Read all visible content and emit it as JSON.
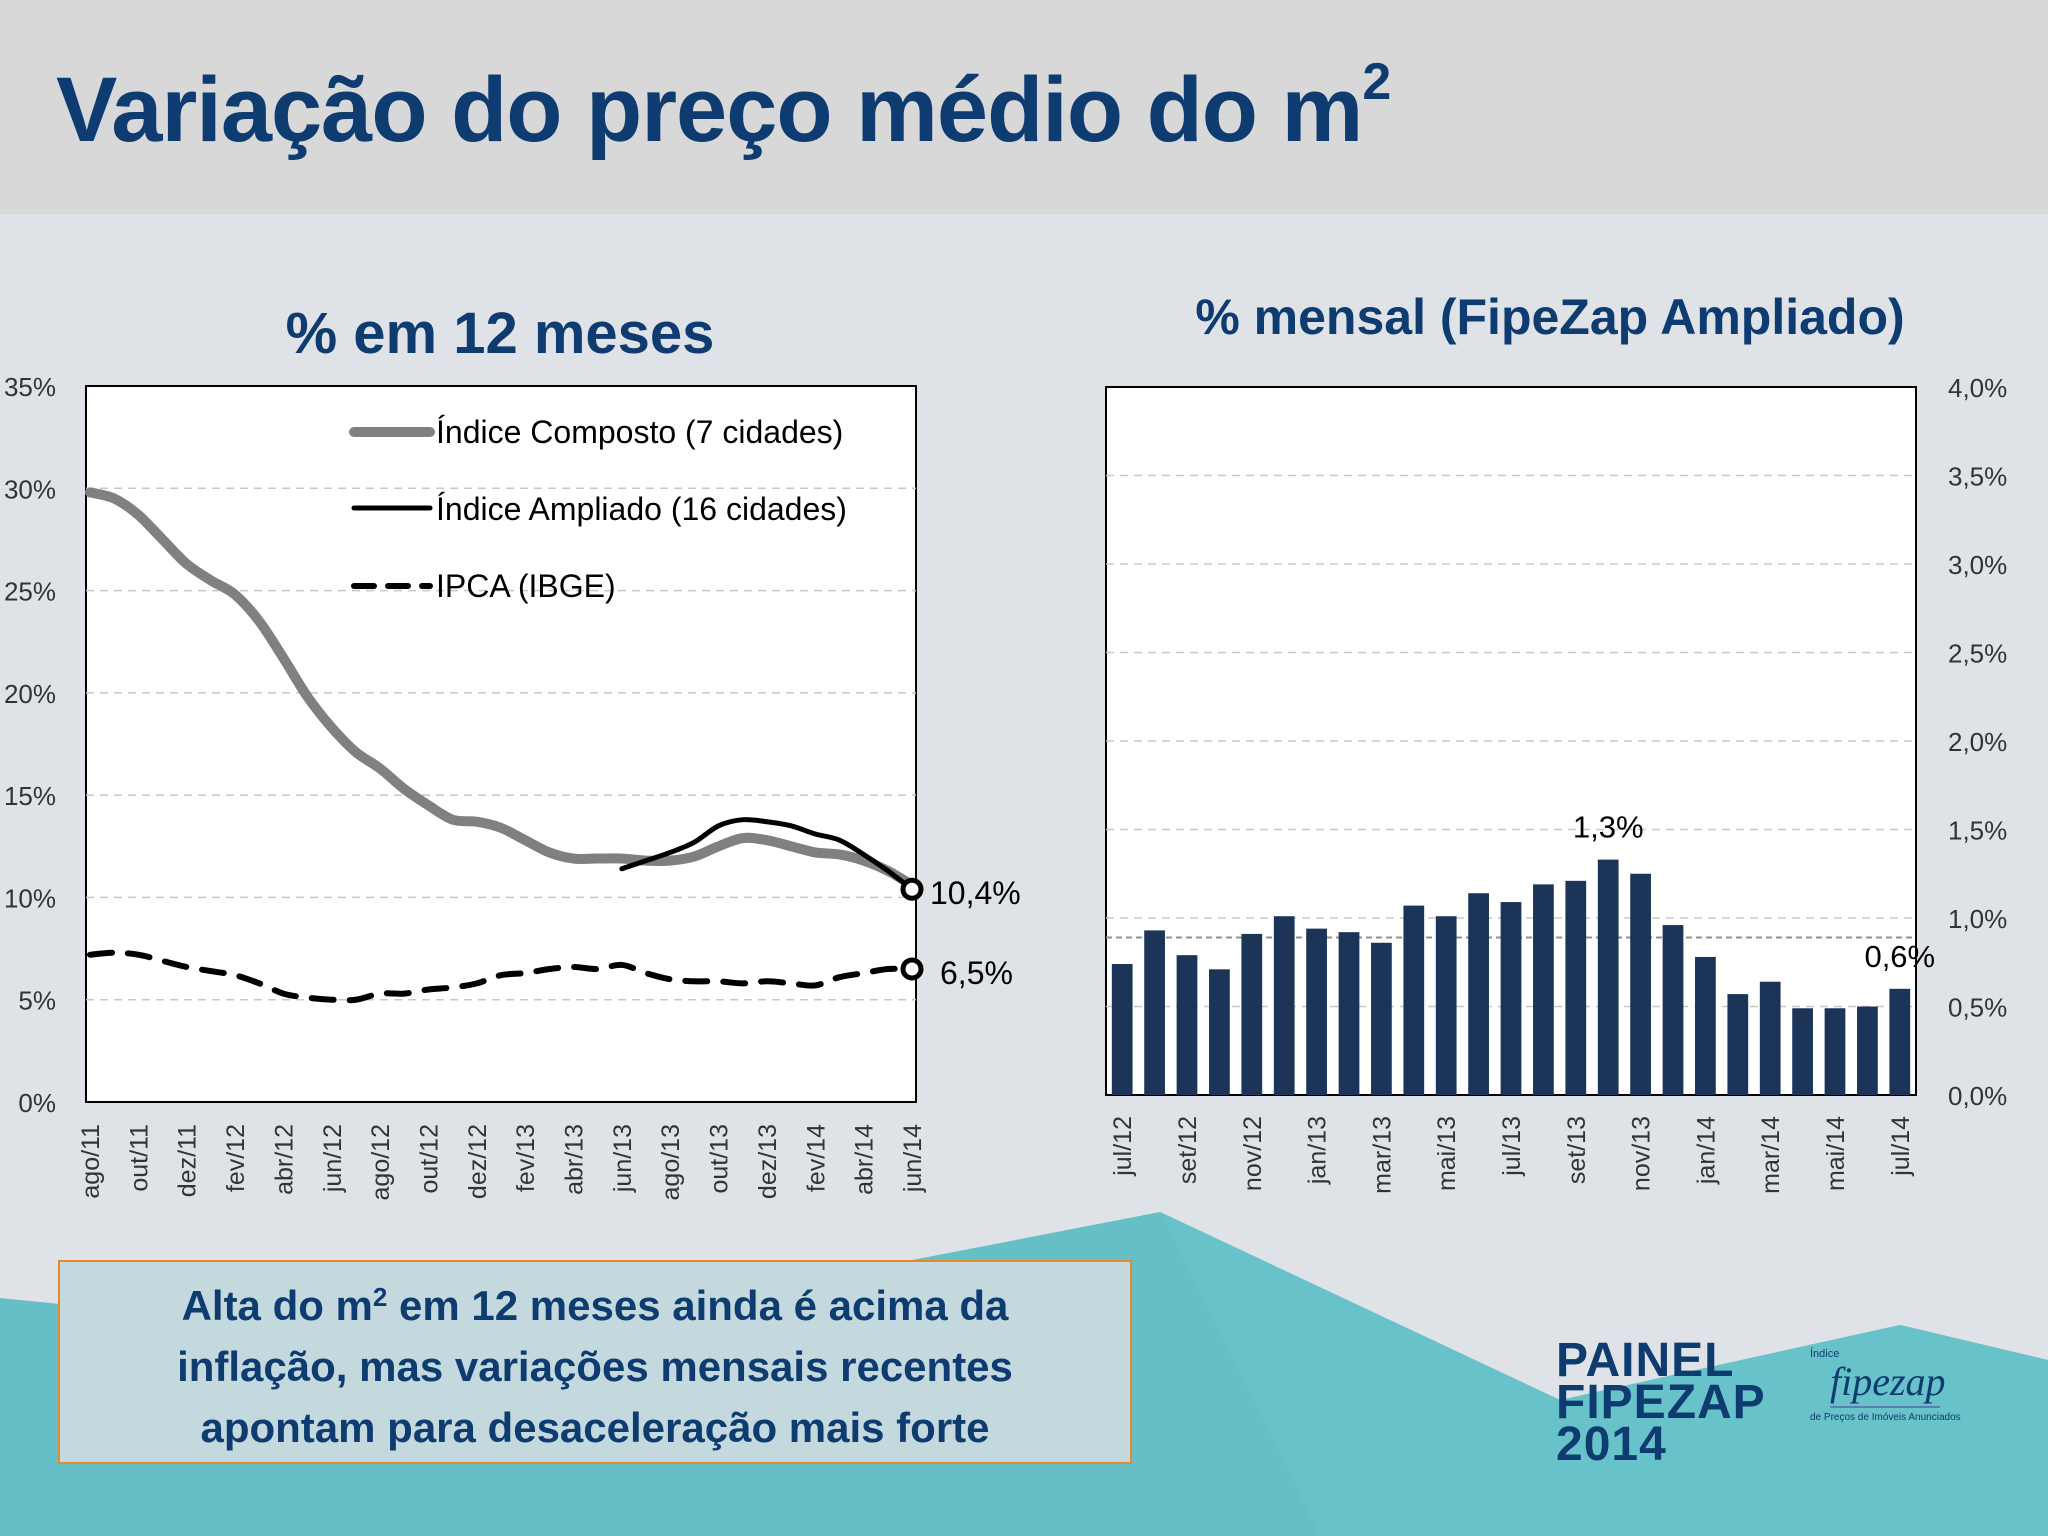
{
  "page": {
    "title": "Variação do preço médio do m",
    "title_sup": "2"
  },
  "colors": {
    "title_blue": "#0e3b70",
    "bar_blue": "#1b3457",
    "composto_gray": "#808080",
    "ampliado_black": "#000000",
    "teal": "#5fbcc4",
    "callout_border": "#e38b2c"
  },
  "callout": {
    "line1_pre": "Alta do m",
    "line1_sup": "2",
    "line1_post": " em 12 meses ainda é acima da",
    "line2": "inflação, mas variações mensais recentes",
    "line3": "apontam para desaceleração mais forte"
  },
  "brand": {
    "line1": "PAINEL",
    "line2": "FIPEZAP",
    "line3": "2014",
    "logo_small": "Índice",
    "logo_word": "fipezap",
    "logo_sub": "de Preços de Imóveis Anunciados"
  },
  "chart_data": [
    {
      "type": "line",
      "title": "% em 12 meses",
      "ylim": [
        0,
        35
      ],
      "y_ticks": [
        "0%",
        "5%",
        "10%",
        "15%",
        "20%",
        "25%",
        "30%",
        "35%"
      ],
      "x_tick_labels": [
        "ago/11",
        "out/11",
        "dez/11",
        "fev/12",
        "abr/12",
        "jun/12",
        "ago/12",
        "out/12",
        "dez/12",
        "fev/13",
        "abr/13",
        "jun/13",
        "ago/13",
        "out/13",
        "dez/13",
        "fev/14",
        "abr/14",
        "jun/14"
      ],
      "months": [
        "ago/11",
        "set/11",
        "out/11",
        "nov/11",
        "dez/11",
        "jan/12",
        "fev/12",
        "mar/12",
        "abr/12",
        "mai/12",
        "jun/12",
        "jul/12",
        "ago/12",
        "set/12",
        "out/12",
        "nov/12",
        "dez/12",
        "jan/13",
        "fev/13",
        "mar/13",
        "abr/13",
        "mai/13",
        "jun/13",
        "jul/13",
        "ago/13",
        "set/13",
        "out/13",
        "nov/13",
        "dez/13",
        "jan/14",
        "fev/14",
        "mar/14",
        "abr/14",
        "mai/14",
        "jun/14"
      ],
      "grid": true,
      "legend_position": "top-right",
      "series": [
        {
          "name": "Índice Composto (7 cidades)",
          "style": "solid-thick",
          "color": "#808080",
          "values": [
            29.8,
            29.5,
            28.7,
            27.5,
            26.3,
            25.5,
            24.8,
            23.5,
            21.7,
            19.8,
            18.3,
            17.1,
            16.3,
            15.3,
            14.5,
            13.8,
            13.7,
            13.4,
            12.8,
            12.2,
            11.9,
            11.9,
            11.9,
            11.8,
            11.8,
            12.0,
            12.5,
            12.9,
            12.8,
            12.5,
            12.2,
            12.1,
            11.8,
            11.3,
            10.6
          ]
        },
        {
          "name": "Índice Ampliado (16 cidades)",
          "style": "solid",
          "color": "#000000",
          "start_index": 22,
          "values": [
            11.4,
            11.8,
            12.2,
            12.7,
            13.5,
            13.8,
            13.7,
            13.5,
            13.1,
            12.8,
            12.1,
            11.3,
            10.4
          ]
        },
        {
          "name": "IPCA (IBGE)",
          "style": "dashed",
          "color": "#000000",
          "values": [
            7.2,
            7.3,
            7.2,
            6.9,
            6.6,
            6.4,
            6.2,
            5.8,
            5.3,
            5.1,
            5.0,
            5.0,
            5.3,
            5.3,
            5.5,
            5.6,
            5.8,
            6.2,
            6.3,
            6.5,
            6.6,
            6.5,
            6.7,
            6.3,
            6.0,
            5.9,
            5.9,
            5.8,
            5.9,
            5.8,
            5.7,
            6.1,
            6.3,
            6.5,
            6.5
          ]
        }
      ],
      "end_labels": [
        "10,4%",
        "6,5%"
      ]
    },
    {
      "type": "bar",
      "title": "% mensal (FipeZap Ampliado)",
      "ylim": [
        0,
        4.0
      ],
      "y_ticks": [
        "0,0%",
        "0,5%",
        "1,0%",
        "1,5%",
        "2,0%",
        "2,5%",
        "3,0%",
        "3,5%",
        "4,0%"
      ],
      "y_axis_side": "right",
      "grid": true,
      "categories": [
        "jul/12",
        "ago/12",
        "set/12",
        "out/12",
        "nov/12",
        "dez/12",
        "jan/13",
        "fev/13",
        "mar/13",
        "abr/13",
        "mai/13",
        "jun/13",
        "jul/13",
        "ago/13",
        "set/13",
        "out/13",
        "nov/13",
        "dez/13",
        "jan/14",
        "fev/14",
        "mar/14",
        "abr/14",
        "mai/14",
        "jun/14",
        "jul/14"
      ],
      "x_tick_labels": [
        "jul/12",
        "set/12",
        "nov/12",
        "jan/13",
        "mar/13",
        "mai/13",
        "jul/13",
        "set/13",
        "nov/13",
        "jan/14",
        "mar/14",
        "mai/14",
        "jul/14"
      ],
      "values": [
        0.74,
        0.93,
        0.79,
        0.71,
        0.91,
        1.01,
        0.94,
        0.92,
        0.86,
        1.07,
        1.01,
        1.14,
        1.09,
        1.19,
        1.21,
        1.33,
        1.25,
        0.96,
        0.78,
        0.57,
        0.64,
        0.49,
        0.49,
        0.5,
        0.6
      ],
      "reference_line": 0.89,
      "data_labels": [
        {
          "index": 15,
          "text": "1,3%"
        },
        {
          "index": 24,
          "text": "0,6%"
        }
      ],
      "bar_color": "#1b3457"
    }
  ]
}
